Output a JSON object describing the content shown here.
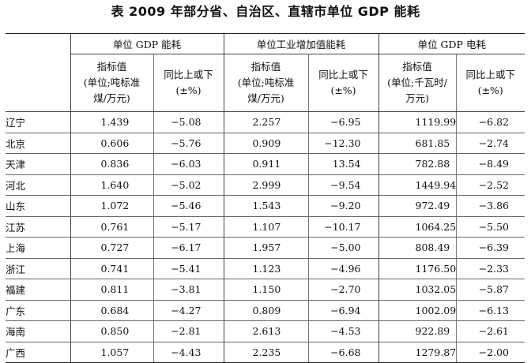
{
  "title": "表 2009 年部分省、自治区、直辖市单位 GDP 能耗",
  "headers": {
    "group1": "单位 GDP 能耗",
    "group2": "单位工业增加值能耗",
    "group3": "单位 GDP 电耗",
    "g1_indicator": "指标值\n(单位;吨标准\n煤/万元)",
    "g1_change": "同比上或下\n(±%)",
    "g2_indicator": "指标值\n(单位;吨标准\n煤/万元)",
    "g2_change": "同比上或下\n(±%)",
    "g3_indicator": "指标值\n(单位;千瓦时/\n万元)",
    "g3_change": "同比上或下\n(±%)"
  },
  "rows": [
    {
      "province": "辽宁",
      "gdp_energy": "1.439",
      "gdp_energy_change": "−5.08",
      "ind_energy": "2.257",
      "ind_energy_change": "−6.95",
      "gdp_power": "1119.99",
      "gdp_power_change": "−6.82"
    },
    {
      "province": "北京",
      "gdp_energy": "0.606",
      "gdp_energy_change": "−5.76",
      "ind_energy": "0.909",
      "ind_energy_change": "−12.30",
      "gdp_power": "681.85",
      "gdp_power_change": "−2.74"
    },
    {
      "province": "天津",
      "gdp_energy": "0.836",
      "gdp_energy_change": "−6.03",
      "ind_energy": "0.911",
      "ind_energy_change": "13.54",
      "gdp_power": "782.88",
      "gdp_power_change": "−8.49"
    },
    {
      "province": "河北",
      "gdp_energy": "1.640",
      "gdp_energy_change": "−5.02",
      "ind_energy": "2.999",
      "ind_energy_change": "−9.54",
      "gdp_power": "1449.94",
      "gdp_power_change": "−2.52"
    },
    {
      "province": "山东",
      "gdp_energy": "1.072",
      "gdp_energy_change": "−5.46",
      "ind_energy": "1.543",
      "ind_energy_change": "−9.20",
      "gdp_power": "972.49",
      "gdp_power_change": "−3.86"
    },
    {
      "province": "江苏",
      "gdp_energy": "0.761",
      "gdp_energy_change": "−5.17",
      "ind_energy": "1.107",
      "ind_energy_change": "−10.17",
      "gdp_power": "1064.25",
      "gdp_power_change": "−5.50"
    },
    {
      "province": "上海",
      "gdp_energy": "0.727",
      "gdp_energy_change": "−6.17",
      "ind_energy": "1.957",
      "ind_energy_change": "−5.00",
      "gdp_power": "808.49",
      "gdp_power_change": "−6.39"
    },
    {
      "province": "浙江",
      "gdp_energy": "0.741",
      "gdp_energy_change": "−5.41",
      "ind_energy": "1.123",
      "ind_energy_change": "−4.96",
      "gdp_power": "1176.50",
      "gdp_power_change": "−2.33"
    },
    {
      "province": "福建",
      "gdp_energy": "0.811",
      "gdp_energy_change": "−3.81",
      "ind_energy": "1.150",
      "ind_energy_change": "−2.70",
      "gdp_power": "1032.05",
      "gdp_power_change": "−5.87"
    },
    {
      "province": "广东",
      "gdp_energy": "0.684",
      "gdp_energy_change": "−4.27",
      "ind_energy": "0.809",
      "ind_energy_change": "−6.94",
      "gdp_power": "1002.09",
      "gdp_power_change": "−6.13"
    },
    {
      "province": "海南",
      "gdp_energy": "0.850",
      "gdp_energy_change": "−2.81",
      "ind_energy": "2.613",
      "ind_energy_change": "−4.53",
      "gdp_power": "922.89",
      "gdp_power_change": "−2.61"
    },
    {
      "province": "广西",
      "gdp_energy": "1.057",
      "gdp_energy_change": "−4.43",
      "ind_energy": "2.235",
      "ind_energy_change": "−6.68",
      "gdp_power": "1279.87",
      "gdp_power_change": "−2.00"
    }
  ]
}
